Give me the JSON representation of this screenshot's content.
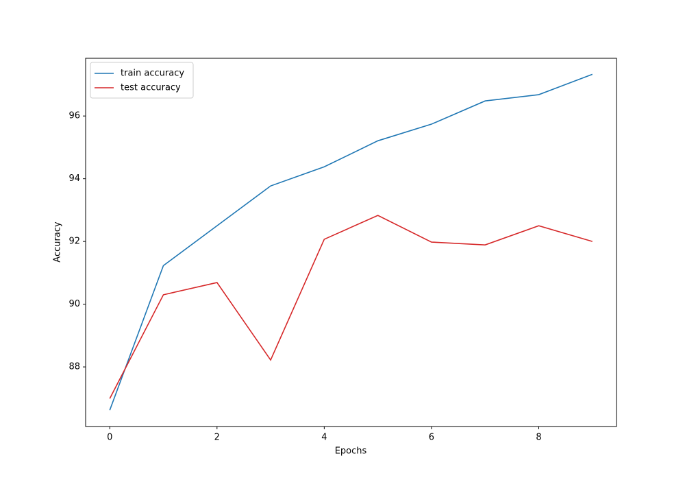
{
  "chart_data": {
    "type": "line",
    "x_label": "Epochs",
    "y_label": "Accuracy",
    "x": [
      0,
      1,
      2,
      3,
      4,
      5,
      6,
      7,
      8,
      9
    ],
    "series": [
      {
        "name": "train accuracy",
        "color": "#1f77b4",
        "values": [
          86.62,
          91.23,
          92.5,
          93.77,
          94.38,
          95.21,
          95.74,
          96.48,
          96.68,
          97.33
        ]
      },
      {
        "name": "test accuracy",
        "color": "#d62728",
        "values": [
          86.99,
          90.3,
          90.69,
          88.22,
          92.07,
          92.83,
          91.98,
          91.89,
          92.5,
          92.0
        ]
      }
    ],
    "xlim": [
      -0.45,
      9.45
    ],
    "xticks": [
      0,
      2,
      4,
      6,
      8
    ],
    "ylim": [
      86.1,
      97.84
    ],
    "yticks": [
      88,
      90,
      92,
      94,
      96
    ],
    "legend": "upper left",
    "grid": false
  }
}
